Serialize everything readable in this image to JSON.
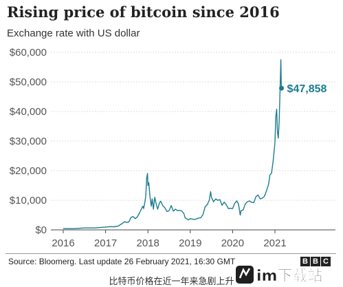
{
  "chart_data": {
    "type": "line",
    "title": "Rising price of bitcoin since 2016",
    "subtitle": "Exchange rate with US dollar",
    "xlabel": "",
    "ylabel": "",
    "x_ticks": [
      "2016",
      "2017",
      "2018",
      "2019",
      "2020",
      "2021"
    ],
    "y_ticks": [
      "$0",
      "$10,000",
      "$20,000",
      "$30,000",
      "$40,000",
      "$50,000",
      "$60,000"
    ],
    "ylim": [
      0,
      60000
    ],
    "xlim": [
      2016.0,
      2021.25
    ],
    "grid": "horizontal",
    "series": [
      {
        "color": "#1b7c8e",
        "points": [
          [
            2016.0,
            430
          ],
          [
            2016.25,
            420
          ],
          [
            2016.5,
            650
          ],
          [
            2016.75,
            640
          ],
          [
            2017.0,
            960
          ],
          [
            2017.1,
            1100
          ],
          [
            2017.2,
            1050
          ],
          [
            2017.3,
            1300
          ],
          [
            2017.4,
            2200
          ],
          [
            2017.45,
            2800
          ],
          [
            2017.5,
            2500
          ],
          [
            2017.55,
            2700
          ],
          [
            2017.6,
            4200
          ],
          [
            2017.65,
            4500
          ],
          [
            2017.7,
            3800
          ],
          [
            2017.75,
            4400
          ],
          [
            2017.8,
            5700
          ],
          [
            2017.85,
            7200
          ],
          [
            2017.88,
            8000
          ],
          [
            2017.9,
            7200
          ],
          [
            2017.93,
            9500
          ],
          [
            2017.95,
            11500
          ],
          [
            2017.97,
            17500
          ],
          [
            2017.99,
            19100
          ],
          [
            2018.0,
            15000
          ],
          [
            2018.02,
            16000
          ],
          [
            2018.05,
            11000
          ],
          [
            2018.08,
            8000
          ],
          [
            2018.1,
            10500
          ],
          [
            2018.13,
            7000
          ],
          [
            2018.16,
            11000
          ],
          [
            2018.2,
            8500
          ],
          [
            2018.23,
            7000
          ],
          [
            2018.27,
            9000
          ],
          [
            2018.3,
            9700
          ],
          [
            2018.35,
            8200
          ],
          [
            2018.4,
            7500
          ],
          [
            2018.45,
            6200
          ],
          [
            2018.5,
            6500
          ],
          [
            2018.55,
            8200
          ],
          [
            2018.6,
            6300
          ],
          [
            2018.65,
            7000
          ],
          [
            2018.7,
            6500
          ],
          [
            2018.75,
            6600
          ],
          [
            2018.8,
            6400
          ],
          [
            2018.85,
            5500
          ],
          [
            2018.88,
            4000
          ],
          [
            2018.92,
            3700
          ],
          [
            2018.96,
            3400
          ],
          [
            2019.0,
            3800
          ],
          [
            2019.1,
            3500
          ],
          [
            2019.2,
            4000
          ],
          [
            2019.25,
            4100
          ],
          [
            2019.3,
            5200
          ],
          [
            2019.35,
            7800
          ],
          [
            2019.4,
            8500
          ],
          [
            2019.45,
            10000
          ],
          [
            2019.48,
            12900
          ],
          [
            2019.5,
            11000
          ],
          [
            2019.55,
            9500
          ],
          [
            2019.6,
            10500
          ],
          [
            2019.65,
            10000
          ],
          [
            2019.7,
            10200
          ],
          [
            2019.75,
            8300
          ],
          [
            2019.8,
            9400
          ],
          [
            2019.85,
            8500
          ],
          [
            2019.9,
            7200
          ],
          [
            2019.95,
            7300
          ],
          [
            2020.0,
            7200
          ],
          [
            2020.05,
            9000
          ],
          [
            2020.1,
            9800
          ],
          [
            2020.14,
            8700
          ],
          [
            2020.18,
            5000
          ],
          [
            2020.2,
            6500
          ],
          [
            2020.25,
            6800
          ],
          [
            2020.3,
            8800
          ],
          [
            2020.35,
            9500
          ],
          [
            2020.4,
            9800
          ],
          [
            2020.45,
            9300
          ],
          [
            2020.5,
            9200
          ],
          [
            2020.55,
            11200
          ],
          [
            2020.6,
            11800
          ],
          [
            2020.65,
            10500
          ],
          [
            2020.7,
            10700
          ],
          [
            2020.75,
            11300
          ],
          [
            2020.8,
            13200
          ],
          [
            2020.85,
            15500
          ],
          [
            2020.88,
            18500
          ],
          [
            2020.92,
            19200
          ],
          [
            2020.96,
            23500
          ],
          [
            2021.0,
            29500
          ],
          [
            2021.02,
            38000
          ],
          [
            2021.04,
            40800
          ],
          [
            2021.06,
            33000
          ],
          [
            2021.08,
            31000
          ],
          [
            2021.1,
            37000
          ],
          [
            2021.12,
            47000
          ],
          [
            2021.13,
            52000
          ],
          [
            2021.14,
            57500
          ],
          [
            2021.15,
            49500
          ],
          [
            2021.155,
            47858
          ]
        ]
      }
    ],
    "annotation": {
      "label": "$47,858",
      "x": 2021.155,
      "y": 47858
    }
  },
  "footer": {
    "source": "Source: Bloomerg. Last update 26 February 2021, 16:30 GMT",
    "bbc_letters": [
      "B",
      "B",
      "C"
    ],
    "caption": "比特币价格在近一年来急剧上升",
    "watermark": "im下载站"
  }
}
